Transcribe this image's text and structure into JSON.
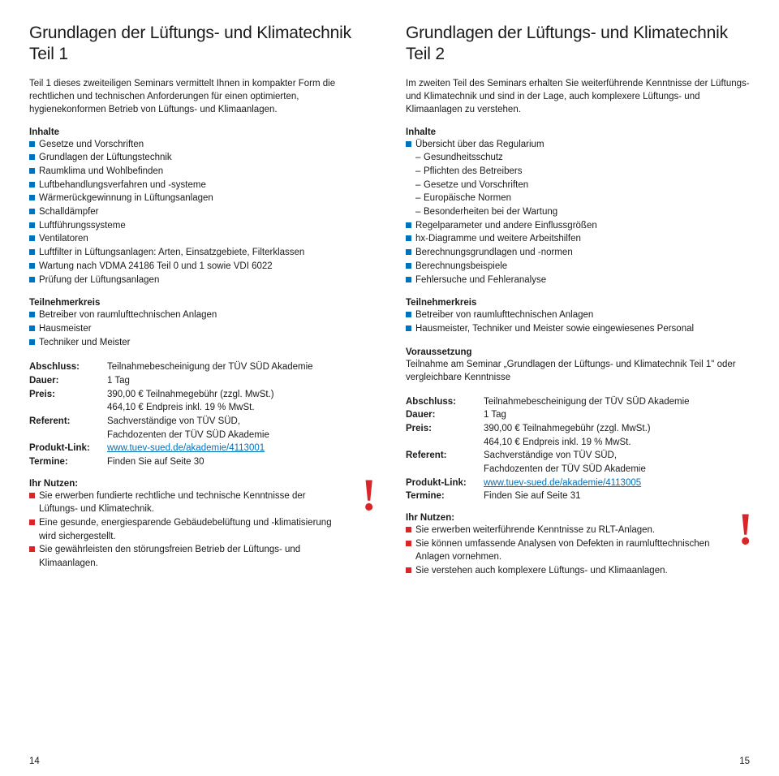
{
  "left": {
    "title": "Grundlagen der Lüftungs- und Klimatechnik\nTeil 1",
    "intro": "Teil 1 dieses zweiteiligen Seminars vermittelt Ihnen in kompakter Form die rechtlichen und technischen Anforderungen für einen optimierten, hygienekonformen Betrieb von Lüftungs- und Klimaanlagen.",
    "inhalte_head": "Inhalte",
    "inhalte": [
      "Gesetze und Vorschriften",
      "Grundlagen der Lüftungstechnik",
      "Raumklima und Wohlbefinden",
      "Luftbehandlungsverfahren und -systeme",
      "Wärmerückgewinnung in Lüftungsanlagen",
      "Schalldämpfer",
      "Luftführungssysteme",
      "Ventilatoren",
      "Luftfilter in Lüftungsanlagen: Arten, Einsatzgebiete, Filterklassen",
      "Wartung nach VDMA 24186 Teil 0 und 1 sowie VDI 6022",
      "Prüfung der Lüftungsanlagen"
    ],
    "teiln_head": "Teilnehmerkreis",
    "teiln": [
      "Betreiber von raumlufttechnischen Anlagen",
      "Hausmeister",
      "Techniker und Meister"
    ],
    "details": [
      [
        "Abschluss:",
        "Teilnahmebescheinigung der TÜV SÜD Akademie"
      ],
      [
        "Dauer:",
        "1 Tag"
      ],
      [
        "Preis:",
        "390,00 € Teilnahmegebühr (zzgl. MwSt.)\n464,10 € Endpreis inkl. 19 % MwSt."
      ],
      [
        "Referent:",
        "Sachverständige von TÜV SÜD,\nFachdozenten der TÜV SÜD Akademie"
      ],
      [
        "Produkt-Link:",
        "www.tuev-sued.de/akademie/4113001"
      ],
      [
        "Termine:",
        "Finden Sie auf Seite 30"
      ]
    ],
    "nutzen_head": "Ihr Nutzen:",
    "nutzen": [
      "Sie erwerben fundierte rechtliche und technische Kenntnisse der Lüftungs- und Klimatechnik.",
      "Eine gesunde, energiesparende Gebäudebelüftung und -klimatisierung wird sichergestellt.",
      "Sie gewährleisten den störungsfreien Betrieb der Lüftungs- und Klimaanlagen."
    ],
    "page": "14"
  },
  "right": {
    "title": "Grundlagen der Lüftungs- und Klimatechnik\nTeil 2",
    "intro": "Im zweiten Teil des Seminars erhalten Sie weiterführende Kenntnisse der Lüftungs- und Klimatechnik und sind in der Lage, auch komplexere Lüftungs- und Klimaanlagen zu verstehen.",
    "inhalte_head": "Inhalte",
    "inhalte_1": "Übersicht über das Regularium",
    "inhalte_1_sub": [
      "Gesundheitsschutz",
      "Pflichten des Betreibers",
      "Gesetze und Vorschriften",
      "Europäische Normen",
      "Besonderheiten bei der Wartung"
    ],
    "inhalte_rest": [
      "Regelparameter und andere Einflussgrößen",
      "hx-Diagramme und weitere Arbeitshilfen",
      "Berechnungsgrundlagen und -normen",
      "Berechnungsbeispiele",
      "Fehlersuche und Fehleranalyse"
    ],
    "teiln_head": "Teilnehmerkreis",
    "teiln": [
      "Betreiber von raumlufttechnischen Anlagen",
      "Hausmeister, Techniker und Meister sowie eingewiesenes Personal"
    ],
    "voraus_head": "Voraussetzung",
    "voraus": "Teilnahme am Seminar „Grundlagen der Lüftungs- und Klimatechnik Teil 1\" oder vergleichbare Kenntnisse",
    "details": [
      [
        "Abschluss:",
        "Teilnahmebescheinigung der TÜV SÜD Akademie"
      ],
      [
        "Dauer:",
        "1 Tag"
      ],
      [
        "Preis:",
        "390,00 € Teilnahmegebühr (zzgl. MwSt.)\n464,10 € Endpreis inkl. 19 % MwSt."
      ],
      [
        "Referent:",
        "Sachverständige von TÜV SÜD,\nFachdozenten der TÜV SÜD Akademie"
      ],
      [
        "Produkt-Link:",
        "www.tuev-sued.de/akademie/4113005"
      ],
      [
        "Termine:",
        "Finden Sie auf Seite 31"
      ]
    ],
    "nutzen_head": "Ihr Nutzen:",
    "nutzen": [
      "Sie erwerben weiterführende Kenntnisse zu RLT-Anlagen.",
      "Sie können umfassende Analysen von Defekten in raumlufttechnischen Anlagen vornehmen.",
      "Sie verstehen auch komplexere Lüftungs- und Klimaanlagen."
    ],
    "page": "15"
  }
}
